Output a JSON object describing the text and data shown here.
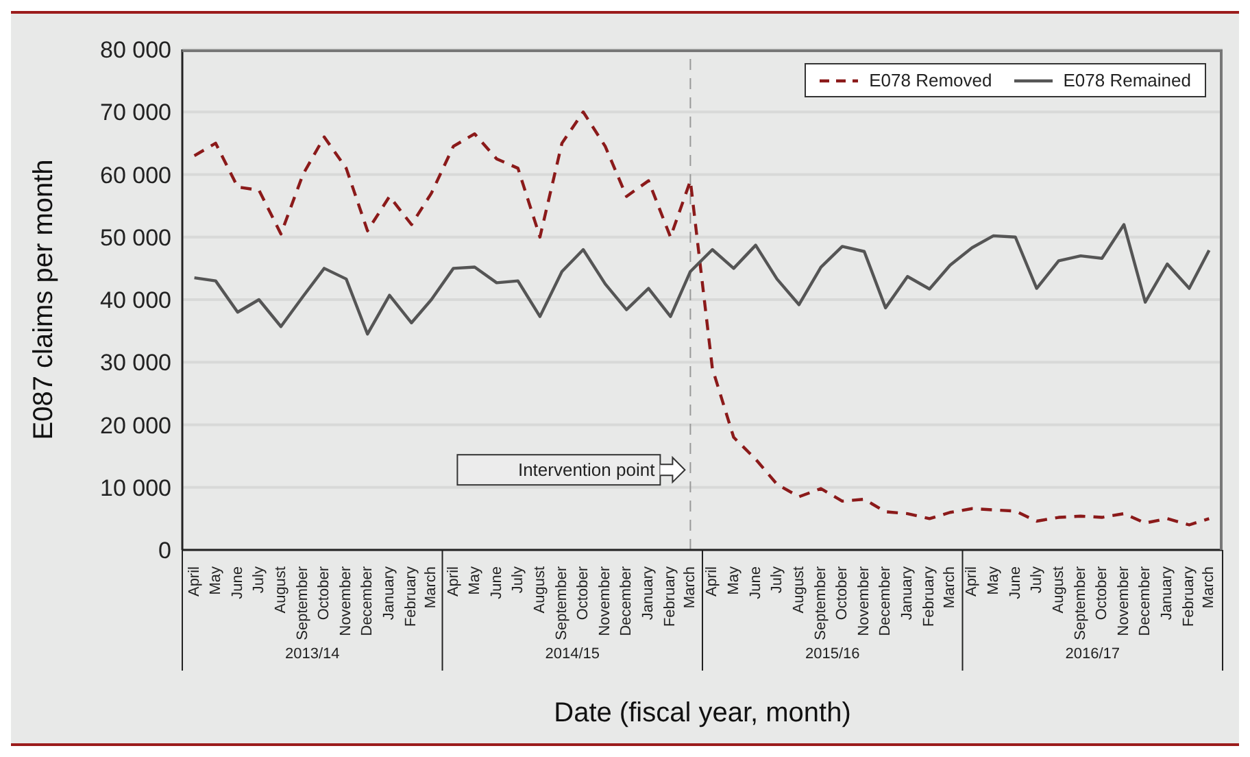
{
  "chart_data": {
    "type": "line",
    "xlabel": "Date (fiscal year, month)",
    "ylabel": "E087 claims per month",
    "x": [
      "2013-04",
      "2013-05",
      "2013-06",
      "2013-07",
      "2013-08",
      "2013-09",
      "2013-10",
      "2013-11",
      "2013-12",
      "2014-01",
      "2014-02",
      "2014-03",
      "2014-04",
      "2014-05",
      "2014-06",
      "2014-07",
      "2014-08",
      "2014-09",
      "2014-10",
      "2014-11",
      "2014-12",
      "2015-01",
      "2015-02",
      "2015-03",
      "2015-04",
      "2015-05",
      "2015-06",
      "2015-07",
      "2015-08",
      "2015-09",
      "2015-10",
      "2015-11",
      "2015-12",
      "2016-01",
      "2016-02",
      "2016-03",
      "2016-04",
      "2016-05",
      "2016-06",
      "2016-07",
      "2016-08",
      "2016-09",
      "2016-10",
      "2016-11",
      "2016-12",
      "2017-01",
      "2017-02",
      "2017-03"
    ],
    "series": [
      {
        "name": "E078 Removed",
        "color": "#8b1a1a",
        "line_style": "dashed",
        "values": [
          63000,
          65000,
          58000,
          57500,
          50500,
          60000,
          66000,
          61000,
          51000,
          56500,
          52000,
          57000,
          64500,
          66500,
          62500,
          61000,
          50000,
          65000,
          70000,
          64500,
          56500,
          59000,
          50000,
          59000,
          29000,
          18000,
          14500,
          10500,
          8500,
          9800,
          7800,
          8100,
          6100,
          5800,
          5000,
          6000,
          6600,
          6400,
          6200,
          4600,
          5200,
          5400,
          5200,
          5800,
          4300,
          5000,
          4000,
          5000
        ]
      },
      {
        "name": "E078 Remained",
        "color": "#555555",
        "line_style": "solid",
        "values": [
          43500,
          43000,
          38000,
          40000,
          35700,
          40500,
          45000,
          43300,
          34500,
          40700,
          36300,
          40000,
          45000,
          45200,
          42700,
          43000,
          37300,
          44500,
          48000,
          42500,
          38400,
          41800,
          37300,
          44500,
          48000,
          45000,
          48700,
          43300,
          39200,
          45200,
          48500,
          47700,
          38700,
          43700,
          41700,
          45500,
          48300,
          50200,
          50000,
          41800,
          46200,
          47000,
          46600,
          52000,
          39600,
          45700,
          41800,
          47900
        ]
      }
    ],
    "xlim": [
      "2013-03-15",
      "2017-03-20"
    ],
    "xticks": [
      {
        "value": "2013-04",
        "label": "April"
      },
      {
        "value": "2013-05",
        "label": "May"
      },
      {
        "value": "2013-06",
        "label": "June"
      },
      {
        "value": "2013-07",
        "label": "July"
      },
      {
        "value": "2013-08",
        "label": "August"
      },
      {
        "value": "2013-09",
        "label": "September"
      },
      {
        "value": "2013-10",
        "label": "October"
      },
      {
        "value": "2013-11",
        "label": "November"
      },
      {
        "value": "2013-12",
        "label": "December"
      },
      {
        "value": "2014-01",
        "label": "January"
      },
      {
        "value": "2014-02",
        "label": "February"
      },
      {
        "value": "2014-03",
        "label": "March"
      },
      {
        "value": "2014-04",
        "label": "April"
      },
      {
        "value": "2014-05",
        "label": "May"
      },
      {
        "value": "2014-06",
        "label": "June"
      },
      {
        "value": "2014-07",
        "label": "July"
      },
      {
        "value": "2014-08",
        "label": "August"
      },
      {
        "value": "2014-09",
        "label": "September"
      },
      {
        "value": "2014-10",
        "label": "October"
      },
      {
        "value": "2014-11",
        "label": "November"
      },
      {
        "value": "2014-12",
        "label": "December"
      },
      {
        "value": "2015-01",
        "label": "January"
      },
      {
        "value": "2015-02",
        "label": "February"
      },
      {
        "value": "2015-03",
        "label": "March"
      },
      {
        "value": "2015-04",
        "label": "April"
      },
      {
        "value": "2015-05",
        "label": "May"
      },
      {
        "value": "2015-06",
        "label": "June"
      },
      {
        "value": "2015-07",
        "label": "July"
      },
      {
        "value": "2015-08",
        "label": "August"
      },
      {
        "value": "2015-09",
        "label": "September"
      },
      {
        "value": "2015-10",
        "label": "October"
      },
      {
        "value": "2015-11",
        "label": "November"
      },
      {
        "value": "2015-12",
        "label": "December"
      },
      {
        "value": "2016-01",
        "label": "January"
      },
      {
        "value": "2016-02",
        "label": "February"
      },
      {
        "value": "2016-03",
        "label": "March"
      },
      {
        "value": "2016-04",
        "label": "April"
      },
      {
        "value": "2016-05",
        "label": "May"
      },
      {
        "value": "2016-06",
        "label": "June"
      },
      {
        "value": "2016-07",
        "label": "July"
      },
      {
        "value": "2016-08",
        "label": "August"
      },
      {
        "value": "2016-09",
        "label": "September"
      },
      {
        "value": "2016-10",
        "label": "October"
      },
      {
        "value": "2016-11",
        "label": "November"
      },
      {
        "value": "2016-12",
        "label": "December"
      },
      {
        "value": "2017-01",
        "label": "January"
      },
      {
        "value": "2017-02",
        "label": "February"
      },
      {
        "value": "2017-03",
        "label": "March"
      }
    ],
    "ylim": [
      0,
      80000
    ],
    "yticks": [
      {
        "value": 0,
        "label": "0"
      },
      {
        "value": 10000,
        "label": "10 000"
      },
      {
        "value": 20000,
        "label": "20 000"
      },
      {
        "value": 30000,
        "label": "30 000"
      },
      {
        "value": 40000,
        "label": "40 000"
      },
      {
        "value": 50000,
        "label": "50 000"
      },
      {
        "value": 60000,
        "label": "60 000"
      },
      {
        "value": 70000,
        "label": "70 000"
      },
      {
        "value": 80000,
        "label": "80 000"
      }
    ],
    "ref_lines": [
      {
        "axis": "x",
        "value": "2015-03",
        "label": "Intervention point",
        "color": "#999999",
        "line_style": "dashed"
      }
    ],
    "annotations": [
      "2013/14",
      "2014/15",
      "2015/16",
      "2016/17"
    ],
    "grid": "y",
    "legend": "top right",
    "marker": "none"
  }
}
